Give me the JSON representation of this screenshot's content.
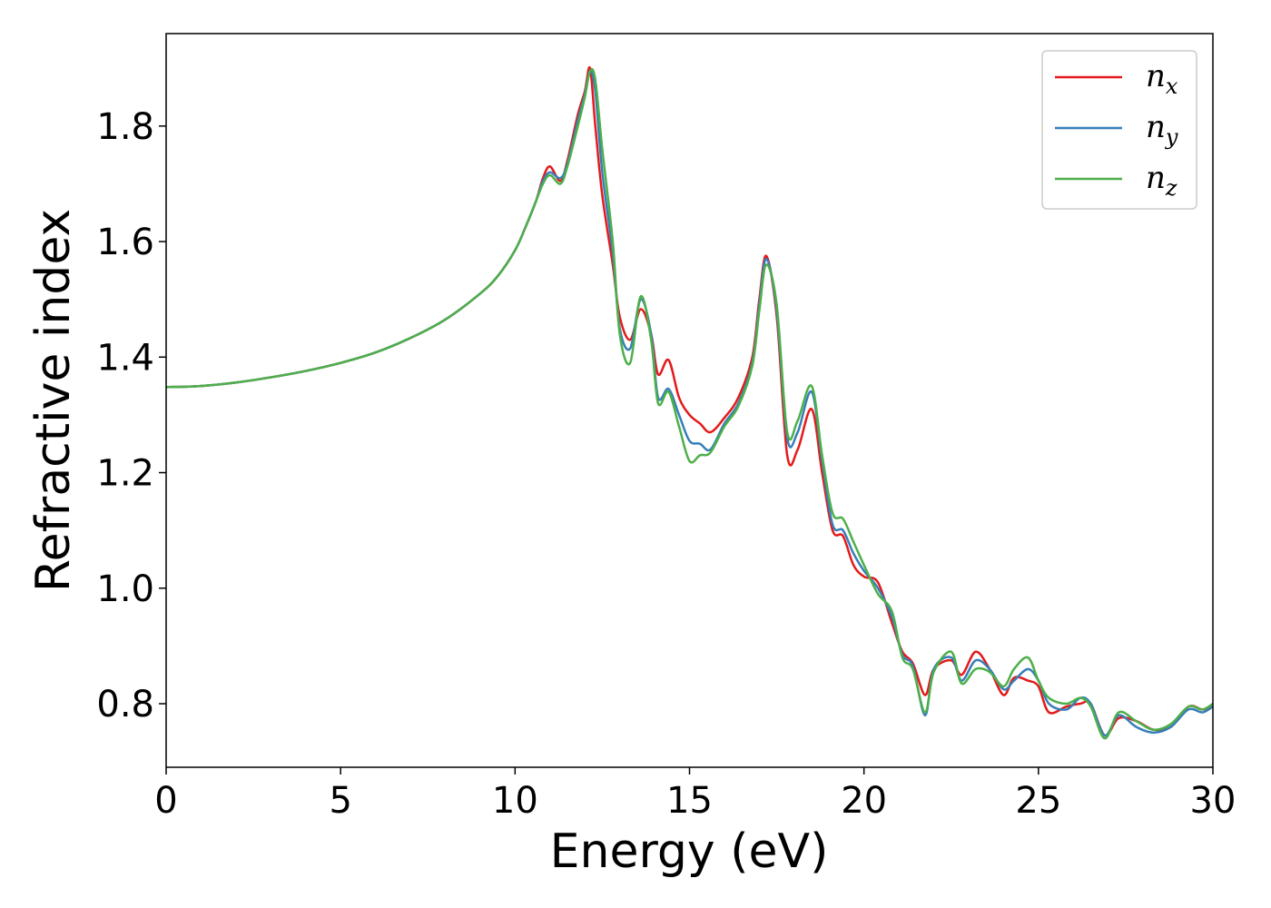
{
  "chart_data": {
    "type": "line",
    "title": "",
    "xlabel": "Energy (eV)",
    "ylabel": "Refractive index",
    "xlim": [
      0,
      30
    ],
    "ylim": [
      0.69,
      1.96
    ],
    "xticks": [
      0,
      5,
      10,
      15,
      20,
      25,
      30
    ],
    "xtick_labels": [
      "0",
      "5",
      "10",
      "15",
      "20",
      "25",
      "30"
    ],
    "yticks": [
      0.8,
      1.0,
      1.2,
      1.4,
      1.6,
      1.8
    ],
    "ytick_labels": [
      "0.8",
      "1.0",
      "1.2",
      "1.4",
      "1.6",
      "1.8"
    ],
    "grid": false,
    "legend_position": "top-right",
    "series": [
      {
        "name": "n_x",
        "legend_main": "n",
        "legend_sub": "x",
        "color": "#e41a1c",
        "x": [
          0,
          1,
          2,
          3,
          4,
          5,
          6,
          7,
          8,
          9,
          9.5,
          10,
          10.3,
          10.6,
          10.8,
          11.0,
          11.3,
          11.5,
          11.8,
          12.0,
          12.15,
          12.3,
          12.5,
          12.8,
          13.0,
          13.3,
          13.6,
          13.9,
          14.1,
          14.4,
          14.7,
          15.0,
          15.3,
          15.6,
          16.0,
          16.4,
          16.8,
          17.0,
          17.2,
          17.5,
          17.8,
          18.1,
          18.5,
          18.8,
          19.1,
          19.4,
          19.7,
          20.0,
          20.4,
          20.8,
          21.1,
          21.4,
          21.75,
          22.0,
          22.5,
          22.8,
          23.2,
          23.6,
          24.0,
          24.3,
          24.7,
          25.0,
          25.3,
          25.8,
          26.2,
          26.5,
          26.9,
          27.3,
          27.8,
          28.3,
          28.8,
          29.3,
          29.7,
          30.0
        ],
        "y": [
          1.348,
          1.35,
          1.356,
          1.365,
          1.376,
          1.39,
          1.408,
          1.433,
          1.465,
          1.51,
          1.54,
          1.585,
          1.625,
          1.67,
          1.71,
          1.73,
          1.705,
          1.74,
          1.82,
          1.86,
          1.9,
          1.8,
          1.68,
          1.56,
          1.47,
          1.43,
          1.483,
          1.44,
          1.37,
          1.395,
          1.33,
          1.3,
          1.285,
          1.27,
          1.295,
          1.33,
          1.4,
          1.5,
          1.575,
          1.47,
          1.23,
          1.24,
          1.31,
          1.2,
          1.1,
          1.09,
          1.04,
          1.02,
          1.01,
          0.94,
          0.89,
          0.87,
          0.815,
          0.86,
          0.875,
          0.85,
          0.89,
          0.86,
          0.815,
          0.845,
          0.84,
          0.83,
          0.785,
          0.795,
          0.8,
          0.8,
          0.745,
          0.775,
          0.77,
          0.755,
          0.76,
          0.795,
          0.79,
          0.795
        ]
      },
      {
        "name": "n_y",
        "legend_main": "n",
        "legend_sub": "y",
        "color": "#377eb8",
        "x": [
          0,
          1,
          2,
          3,
          4,
          5,
          6,
          7,
          8,
          9,
          9.5,
          10,
          10.3,
          10.6,
          10.8,
          11.0,
          11.3,
          11.5,
          11.8,
          12.0,
          12.15,
          12.3,
          12.5,
          12.8,
          13.0,
          13.3,
          13.6,
          13.9,
          14.1,
          14.4,
          14.7,
          15.0,
          15.3,
          15.6,
          16.0,
          16.4,
          16.8,
          17.0,
          17.2,
          17.5,
          17.8,
          18.1,
          18.5,
          18.8,
          19.1,
          19.4,
          19.7,
          20.0,
          20.4,
          20.8,
          21.1,
          21.4,
          21.75,
          22.0,
          22.5,
          22.8,
          23.2,
          23.6,
          24.0,
          24.3,
          24.7,
          25.0,
          25.3,
          25.8,
          26.2,
          26.5,
          26.9,
          27.3,
          27.8,
          28.3,
          28.8,
          29.3,
          29.7,
          30.0
        ],
        "y": [
          1.348,
          1.35,
          1.356,
          1.365,
          1.376,
          1.39,
          1.408,
          1.433,
          1.465,
          1.51,
          1.54,
          1.585,
          1.625,
          1.67,
          1.705,
          1.72,
          1.71,
          1.735,
          1.81,
          1.855,
          1.895,
          1.86,
          1.72,
          1.58,
          1.45,
          1.415,
          1.5,
          1.44,
          1.33,
          1.345,
          1.3,
          1.255,
          1.25,
          1.24,
          1.285,
          1.32,
          1.39,
          1.49,
          1.57,
          1.48,
          1.26,
          1.27,
          1.34,
          1.22,
          1.11,
          1.1,
          1.06,
          1.03,
          1.0,
          0.95,
          0.885,
          0.865,
          0.78,
          0.86,
          0.88,
          0.84,
          0.875,
          0.86,
          0.825,
          0.84,
          0.86,
          0.84,
          0.8,
          0.79,
          0.81,
          0.8,
          0.745,
          0.78,
          0.76,
          0.75,
          0.76,
          0.79,
          0.785,
          0.795
        ]
      },
      {
        "name": "n_z",
        "legend_main": "n",
        "legend_sub": "z",
        "color": "#4daf4a",
        "x": [
          0,
          1,
          2,
          3,
          4,
          5,
          6,
          7,
          8,
          9,
          9.5,
          10,
          10.3,
          10.6,
          10.8,
          11.0,
          11.3,
          11.5,
          11.8,
          12.0,
          12.15,
          12.3,
          12.5,
          12.8,
          13.0,
          13.3,
          13.6,
          13.9,
          14.1,
          14.4,
          14.7,
          15.0,
          15.3,
          15.6,
          16.0,
          16.4,
          16.8,
          17.0,
          17.2,
          17.5,
          17.8,
          18.1,
          18.5,
          18.8,
          19.1,
          19.4,
          19.7,
          20.0,
          20.4,
          20.8,
          21.1,
          21.4,
          21.75,
          22.0,
          22.5,
          22.8,
          23.2,
          23.6,
          24.0,
          24.3,
          24.7,
          25.0,
          25.3,
          25.8,
          26.2,
          26.5,
          26.9,
          27.3,
          27.8,
          28.3,
          28.8,
          29.3,
          29.7,
          30.0
        ],
        "y": [
          1.348,
          1.35,
          1.356,
          1.365,
          1.376,
          1.39,
          1.408,
          1.433,
          1.465,
          1.51,
          1.54,
          1.585,
          1.625,
          1.67,
          1.7,
          1.715,
          1.7,
          1.73,
          1.8,
          1.85,
          1.895,
          1.88,
          1.76,
          1.6,
          1.44,
          1.39,
          1.505,
          1.43,
          1.32,
          1.34,
          1.28,
          1.22,
          1.23,
          1.235,
          1.28,
          1.315,
          1.385,
          1.48,
          1.56,
          1.49,
          1.27,
          1.29,
          1.35,
          1.23,
          1.13,
          1.12,
          1.08,
          1.04,
          0.99,
          0.96,
          0.88,
          0.86,
          0.785,
          0.855,
          0.89,
          0.835,
          0.86,
          0.855,
          0.83,
          0.86,
          0.88,
          0.84,
          0.81,
          0.8,
          0.81,
          0.795,
          0.74,
          0.785,
          0.77,
          0.755,
          0.765,
          0.795,
          0.79,
          0.8
        ]
      }
    ]
  }
}
